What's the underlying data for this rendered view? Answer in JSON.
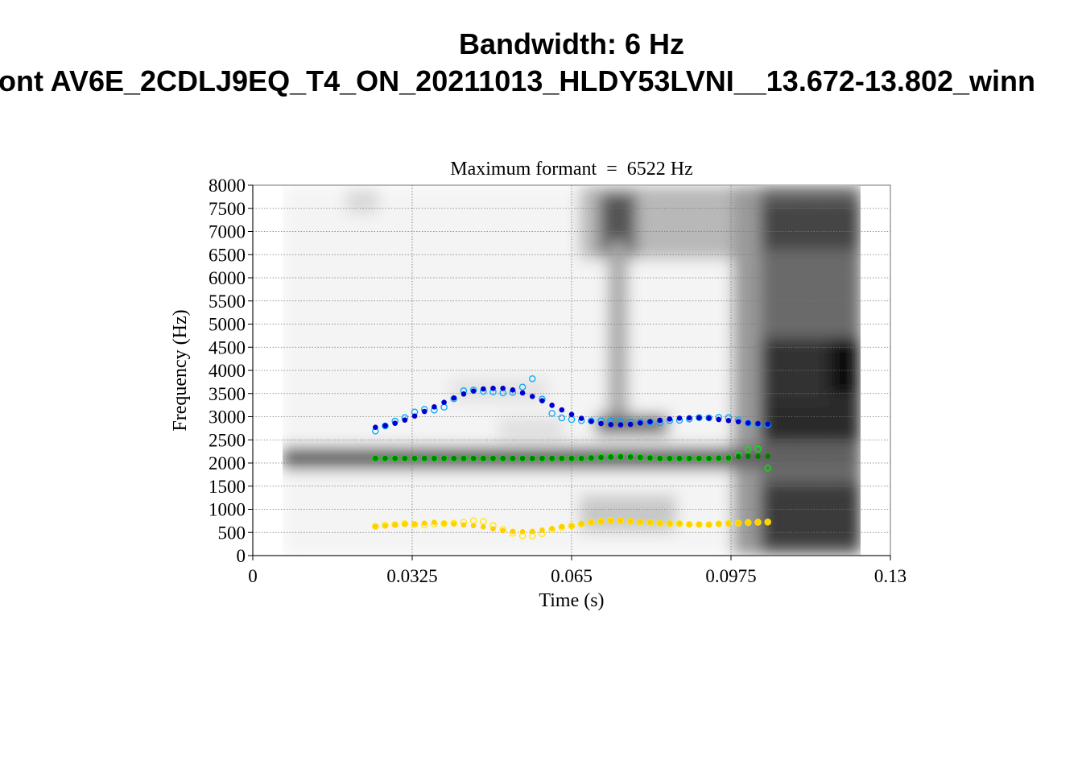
{
  "title_line1": "Bandwidth: 6 Hz",
  "title_line2": "ont AV6E_2CDLJ9EQ_T4_ON_20211013_HLDY53LVNI__13.672-13.802_winn",
  "chart_data": {
    "type": "scatter",
    "title": "Maximum formant  =  6522 Hz",
    "xlabel": "Time (s)",
    "ylabel": "Frequency (Hz)",
    "xlim": [
      0,
      0.13
    ],
    "ylim": [
      0,
      8000
    ],
    "x_ticks": [
      "0",
      "0.0325",
      "0.065",
      "0.0975",
      "0.13"
    ],
    "x_tick_values": [
      0,
      0.0325,
      0.065,
      0.0975,
      0.13
    ],
    "y_ticks": [
      "0",
      "500",
      "1000",
      "1500",
      "2000",
      "2500",
      "3000",
      "3500",
      "4000",
      "4500",
      "5000",
      "5500",
      "6000",
      "6500",
      "7000",
      "7500",
      "8000"
    ],
    "grid": true,
    "background": "spectrogram (grayscale), 0.006–0.124 s",
    "time_start": 0.025,
    "time_step": 0.002,
    "series": [
      {
        "name": "F1 (filled)",
        "marker": "filled",
        "color": "#ffd000",
        "values": [
          626,
          638,
          661,
          678,
          684,
          701,
          719,
          701,
          684,
          661,
          649,
          620,
          580,
          539,
          522,
          516,
          522,
          551,
          586,
          626,
          638,
          690,
          719,
          736,
          754,
          754,
          742,
          730,
          719,
          701,
          696,
          690,
          678,
          673,
          667,
          684,
          696,
          701,
          713,
          719,
          725
        ]
      },
      {
        "name": "F1 (open)",
        "marker": "open",
        "color": "#ffe800",
        "values": [
          630,
          660,
          670,
          690,
          670,
          660,
          680,
          690,
          700,
          720,
          754,
          738,
          649,
          560,
          482,
          423,
          423,
          470,
          560,
          610,
          640,
          680,
          720,
          740,
          760,
          750,
          740,
          720,
          710,
          700,
          690,
          690,
          670,
          670,
          667,
          684,
          696,
          701,
          713,
          719,
          725
        ]
      },
      {
        "name": "F2 (filled)",
        "marker": "filled",
        "color": "#008000",
        "values": [
          2100,
          2100,
          2100,
          2100,
          2100,
          2100,
          2100,
          2100,
          2100,
          2100,
          2100,
          2100,
          2100,
          2100,
          2100,
          2100,
          2100,
          2100,
          2100,
          2100,
          2100,
          2100,
          2110,
          2120,
          2130,
          2135,
          2130,
          2120,
          2110,
          2100,
          2100,
          2100,
          2100,
          2100,
          2100,
          2105,
          2110,
          2140,
          2145,
          2145,
          2145
        ]
      },
      {
        "name": "F2 (open)",
        "marker": "open",
        "color": "#00ee00",
        "values": [
          2100,
          2100,
          2100,
          2100,
          2100,
          2100,
          2100,
          2100,
          2100,
          2100,
          2100,
          2100,
          2100,
          2100,
          2100,
          2100,
          2100,
          2100,
          2100,
          2100,
          2100,
          2100,
          2110,
          2120,
          2130,
          2135,
          2130,
          2120,
          2110,
          2100,
          2100,
          2100,
          2100,
          2100,
          2100,
          2105,
          2110,
          2168,
          2290,
          2301,
          1890
        ]
      },
      {
        "name": "F3 (filled)",
        "marker": "filled",
        "color": "#0000d0",
        "values": [
          2770,
          2805,
          2858,
          2928,
          3014,
          3113,
          3212,
          3310,
          3403,
          3490,
          3553,
          3600,
          3612,
          3612,
          3577,
          3513,
          3438,
          3345,
          3246,
          3148,
          3049,
          2965,
          2899,
          2852,
          2829,
          2826,
          2835,
          2864,
          2893,
          2922,
          2951,
          2969,
          2975,
          2975,
          2969,
          2939,
          2916,
          2893,
          2864,
          2852,
          2841
        ]
      },
      {
        "name": "F3 (open)",
        "marker": "open",
        "color": "#00a8ff",
        "values": [
          2690,
          2800,
          2904,
          2980,
          3101,
          3159,
          3142,
          3206,
          3386,
          3560,
          3577,
          3548,
          3536,
          3513,
          3525,
          3640,
          3820,
          3380,
          3072,
          2974,
          2939,
          2916,
          2910,
          2910,
          2910,
          2899,
          2887,
          2887,
          2881,
          2870,
          2916,
          2922,
          2951,
          2980,
          2975,
          2986,
          2980,
          2933,
          2858,
          2829,
          2829
        ]
      }
    ]
  }
}
